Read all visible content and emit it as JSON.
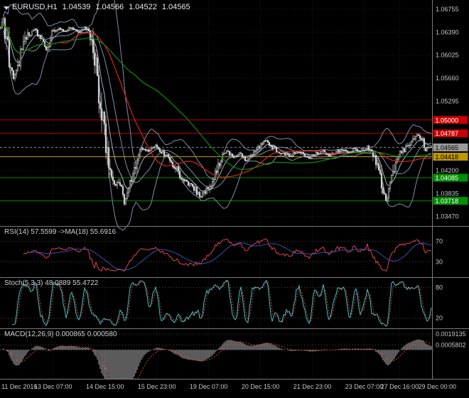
{
  "header": {
    "symbol": "EURUSD,H1",
    "open": "1.04539",
    "high": "1.04566",
    "low": "1.04522",
    "close": "1.04565"
  },
  "palette": {
    "background": "#000000",
    "axis_text": "#c6c6c6",
    "grid": "#242424",
    "panel_grid": "#4a4a4a",
    "separator": "#7a7a7a",
    "candle": "#cfcfcf",
    "ma_red": "#e02020",
    "ma_green": "#0f8a0f",
    "bollinger": "#7e90a8",
    "bollinger_fast": "#9fb0c4",
    "level_red": "#c80000",
    "level_yellow": "#c09600",
    "level_green": "#009000",
    "current_price_bg": "#9b9b9b",
    "rsi_line": "#de4257",
    "rsi_ma": "#3c50a8",
    "stoch_k": "#3fc6c6",
    "stoch_d": "#d34141",
    "macd_hist": "#b6b6b6",
    "macd_signal": "#d34141"
  },
  "chart_data": {
    "type": "candlestick",
    "symbol": "EURUSD",
    "timeframe": "H1",
    "title": "EURUSD,H1 1.04539 1.04566 1.04522 1.04565",
    "ohlc": {
      "open": 1.04539,
      "high": 1.04566,
      "low": 1.04522,
      "close": 1.04565
    },
    "main": {
      "price_axis_ticks": [
        "1.06755",
        "1.06390",
        "1.06025",
        "1.05660",
        "1.05295",
        "1.04200",
        "1.03835",
        "1.03470"
      ],
      "grid_prices": [
        1.06755,
        1.0639,
        1.06025,
        1.0566,
        1.05295,
        1.0493,
        1.04565,
        1.042,
        1.03835,
        1.0347
      ],
      "price_max": 1.069,
      "price_min": 1.0332,
      "current_price": 1.04565,
      "current_price_label": "1.04565",
      "levels": [
        {
          "price": 1.05,
          "label": "1.05000",
          "color": "level_red",
          "text": "#ffffff"
        },
        {
          "price": 1.04787,
          "label": "1.04787",
          "color": "level_red",
          "text": "#ffffff"
        },
        {
          "price": 1.04418,
          "label": "1.04418",
          "color": "level_yellow",
          "text": "#000000"
        },
        {
          "price": 1.04085,
          "label": "1.04085",
          "color": "level_green",
          "text": "#ffffff"
        },
        {
          "price": 1.03718,
          "label": "1.03718",
          "color": "level_green",
          "text": "#ffffff"
        }
      ],
      "bar_count": 304,
      "overlays": {
        "ma_red_period": 42,
        "ma_green_period": 96,
        "ema_fast_period": 9,
        "bollinger_period": 20,
        "bollinger_dev": 2
      },
      "price_path": [
        [
          0.0,
          1.0645
        ],
        [
          0.006,
          1.0657
        ],
        [
          0.014,
          1.062
        ],
        [
          0.022,
          1.0585
        ],
        [
          0.03,
          1.0563
        ],
        [
          0.04,
          1.0585
        ],
        [
          0.052,
          1.0618
        ],
        [
          0.065,
          1.0636
        ],
        [
          0.08,
          1.0642
        ],
        [
          0.095,
          1.0625
        ],
        [
          0.108,
          1.061
        ],
        [
          0.12,
          1.0636
        ],
        [
          0.135,
          1.0646
        ],
        [
          0.15,
          1.064
        ],
        [
          0.165,
          1.0647
        ],
        [
          0.18,
          1.0638
        ],
        [
          0.195,
          1.0645
        ],
        [
          0.207,
          1.0636
        ],
        [
          0.217,
          1.06
        ],
        [
          0.227,
          1.0545
        ],
        [
          0.237,
          1.0496
        ],
        [
          0.247,
          1.0444
        ],
        [
          0.257,
          1.0415
        ],
        [
          0.267,
          1.0396
        ],
        [
          0.277,
          1.0402
        ],
        [
          0.287,
          1.037
        ],
        [
          0.297,
          1.0388
        ],
        [
          0.307,
          1.0415
        ],
        [
          0.317,
          1.0441
        ],
        [
          0.33,
          1.0455
        ],
        [
          0.345,
          1.0449
        ],
        [
          0.36,
          1.0461
        ],
        [
          0.375,
          1.0449
        ],
        [
          0.39,
          1.0438
        ],
        [
          0.405,
          1.0426
        ],
        [
          0.42,
          1.0406
        ],
        [
          0.435,
          1.0398
        ],
        [
          0.45,
          1.0392
        ],
        [
          0.463,
          1.0378
        ],
        [
          0.475,
          1.0388
        ],
        [
          0.488,
          1.04
        ],
        [
          0.5,
          1.042
        ],
        [
          0.513,
          1.0443
        ],
        [
          0.527,
          1.0451
        ],
        [
          0.541,
          1.0439
        ],
        [
          0.555,
          1.0447
        ],
        [
          0.569,
          1.0435
        ],
        [
          0.583,
          1.0443
        ],
        [
          0.597,
          1.0456
        ],
        [
          0.612,
          1.0469
        ],
        [
          0.627,
          1.0459
        ],
        [
          0.642,
          1.0451
        ],
        [
          0.657,
          1.0447
        ],
        [
          0.672,
          1.0443
        ],
        [
          0.687,
          1.045
        ],
        [
          0.702,
          1.0445
        ],
        [
          0.717,
          1.0439
        ],
        [
          0.732,
          1.0446
        ],
        [
          0.747,
          1.0451
        ],
        [
          0.762,
          1.0444
        ],
        [
          0.777,
          1.0449
        ],
        [
          0.792,
          1.0453
        ],
        [
          0.807,
          1.0449
        ],
        [
          0.822,
          1.0454
        ],
        [
          0.837,
          1.045
        ],
        [
          0.852,
          1.0457
        ],
        [
          0.865,
          1.0446
        ],
        [
          0.876,
          1.0421
        ],
        [
          0.886,
          1.039
        ],
        [
          0.895,
          1.0372
        ],
        [
          0.903,
          1.0386
        ],
        [
          0.911,
          1.0417
        ],
        [
          0.919,
          1.0441
        ],
        [
          0.932,
          1.045
        ],
        [
          0.945,
          1.0457
        ],
        [
          0.957,
          1.0466
        ],
        [
          0.968,
          1.0479
        ],
        [
          0.978,
          1.047
        ],
        [
          0.988,
          1.0453
        ],
        [
          1.0,
          1.04565
        ]
      ]
    },
    "rsi": {
      "label": "RSI(14) 57.5599 ->MA(18) 55.6916",
      "period": 14,
      "ma_period": 18,
      "value": 57.5599,
      "ma_value": 55.6916,
      "levels": [
        70,
        30
      ],
      "range": [
        0,
        100
      ]
    },
    "stoch": {
      "label": "Stoch(5,3,3) 48.0889 55.4722",
      "k_period": 5,
      "d_period": 3,
      "slowing": 3,
      "value": 48.0889,
      "signal_value": 55.4722,
      "levels": [
        80,
        20
      ],
      "range": [
        0,
        100
      ]
    },
    "macd": {
      "label": "MACD(12,26,9) 0.000865 0.000580",
      "fast": 12,
      "slow": 26,
      "signal": 9,
      "value": 0.000865,
      "signal_value": 0.00058,
      "axis_ticks": [
        {
          "value": 0.0019135,
          "label": "0.0019135"
        },
        {
          "value": 0.0005802,
          "label": "0.0005802"
        }
      ],
      "range": [
        -0.0035,
        0.0026
      ]
    },
    "time_axis": {
      "labels": [
        "11 Dec 2016",
        "13 Dec 07:00",
        "14 Dec 15:00",
        "15 Dec 23:00",
        "19 Dec 07:00",
        "20 Dec 15:00",
        "21 Dec 23:00",
        "23 Dec 07:00",
        "27 Dec 16:00",
        "29 Dec 00:00"
      ],
      "fractions": [
        0.004,
        0.123,
        0.243,
        0.363,
        0.483,
        0.603,
        0.723,
        0.843,
        0.925,
        1.012
      ]
    }
  }
}
